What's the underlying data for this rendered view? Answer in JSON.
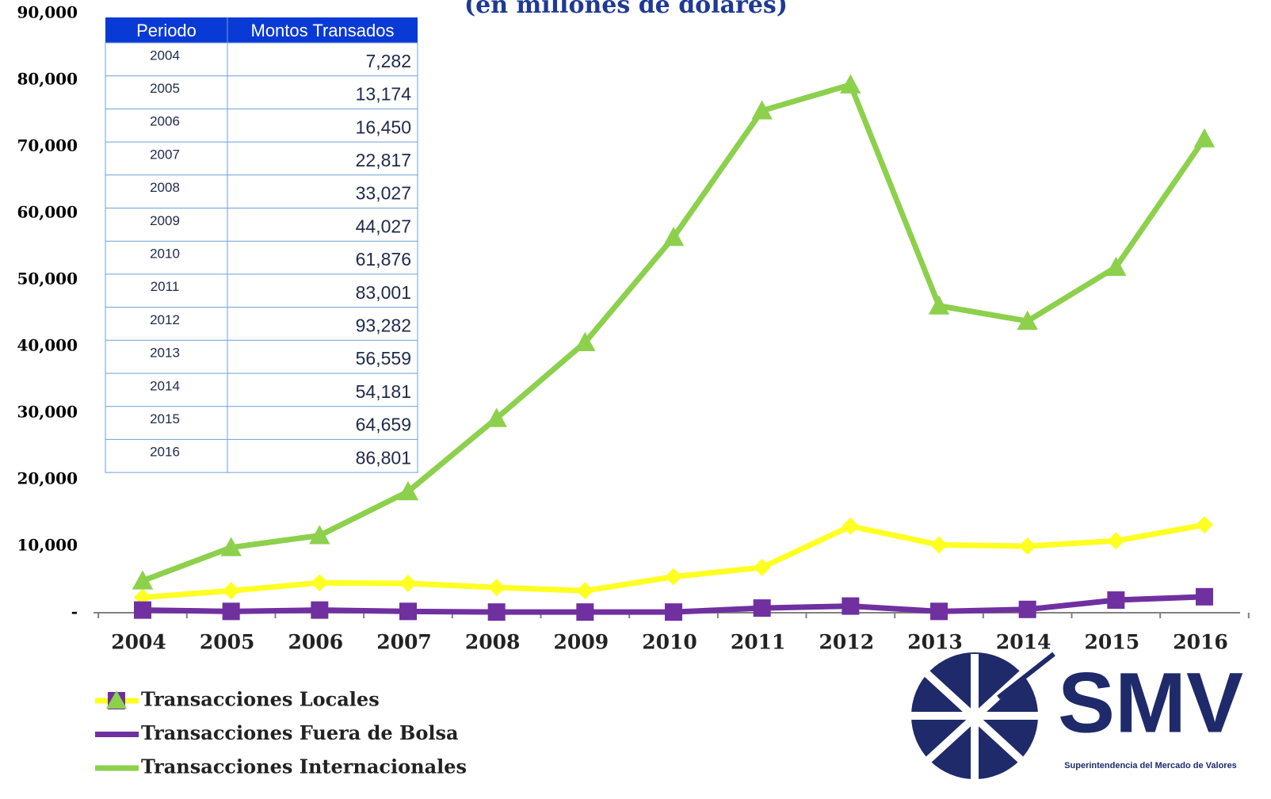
{
  "chart_data": {
    "type": "line",
    "title": "(en millones de dólares)",
    "categories": [
      "2004",
      "2005",
      "2006",
      "2007",
      "2008",
      "2009",
      "2010",
      "2011",
      "2012",
      "2013",
      "2014",
      "2015",
      "2016"
    ],
    "series": [
      {
        "name": "Transacciones Locales",
        "color": "#ffff22",
        "marker": "diamond",
        "values": [
          2300,
          3300,
          4500,
          4400,
          3800,
          3300,
          5400,
          6800,
          13000,
          10200,
          10000,
          10800,
          13200
        ]
      },
      {
        "name": "Transacciones Fuera de Bolsa",
        "color": "#7030a0",
        "marker": "square",
        "values": [
          400,
          200,
          400,
          200,
          100,
          100,
          100,
          700,
          1000,
          200,
          500,
          1900,
          2400
        ]
      },
      {
        "name": "Transacciones Internacionales",
        "color": "#8cd04c",
        "marker": "triangle",
        "values": [
          4800,
          9800,
          11600,
          18200,
          29200,
          40600,
          56400,
          75400,
          79300,
          46100,
          43800,
          51900,
          71200
        ]
      }
    ],
    "ylim": [
      0,
      90000
    ],
    "yticks": [
      {
        "value": 0,
        "label": "-"
      },
      {
        "value": 10000,
        "label": "10,000"
      },
      {
        "value": 20000,
        "label": "20,000"
      },
      {
        "value": 30000,
        "label": "30,000"
      },
      {
        "value": 40000,
        "label": "40,000"
      },
      {
        "value": 50000,
        "label": "50,000"
      },
      {
        "value": 60000,
        "label": "60,000"
      },
      {
        "value": 70000,
        "label": "70,000"
      },
      {
        "value": 80000,
        "label": "80,000"
      },
      {
        "value": 90000,
        "label": "90,000"
      }
    ],
    "legend": "bottom-left"
  },
  "table": {
    "header": [
      "Periodo",
      "Montos Transados"
    ],
    "rows": [
      [
        "2004",
        "7,282"
      ],
      [
        "2005",
        "13,174"
      ],
      [
        "2006",
        "16,450"
      ],
      [
        "2007",
        "22,817"
      ],
      [
        "2008",
        "33,027"
      ],
      [
        "2009",
        "44,027"
      ],
      [
        "2010",
        "61,876"
      ],
      [
        "2011",
        "83,001"
      ],
      [
        "2012",
        "93,282"
      ],
      [
        "2013",
        "56,559"
      ],
      [
        "2014",
        "54,181"
      ],
      [
        "2015",
        "64,659"
      ],
      [
        "2016",
        "86,801"
      ]
    ]
  },
  "logo": {
    "name": "SMV",
    "subtitle": "Superintendencia del Mercado de Valores"
  }
}
